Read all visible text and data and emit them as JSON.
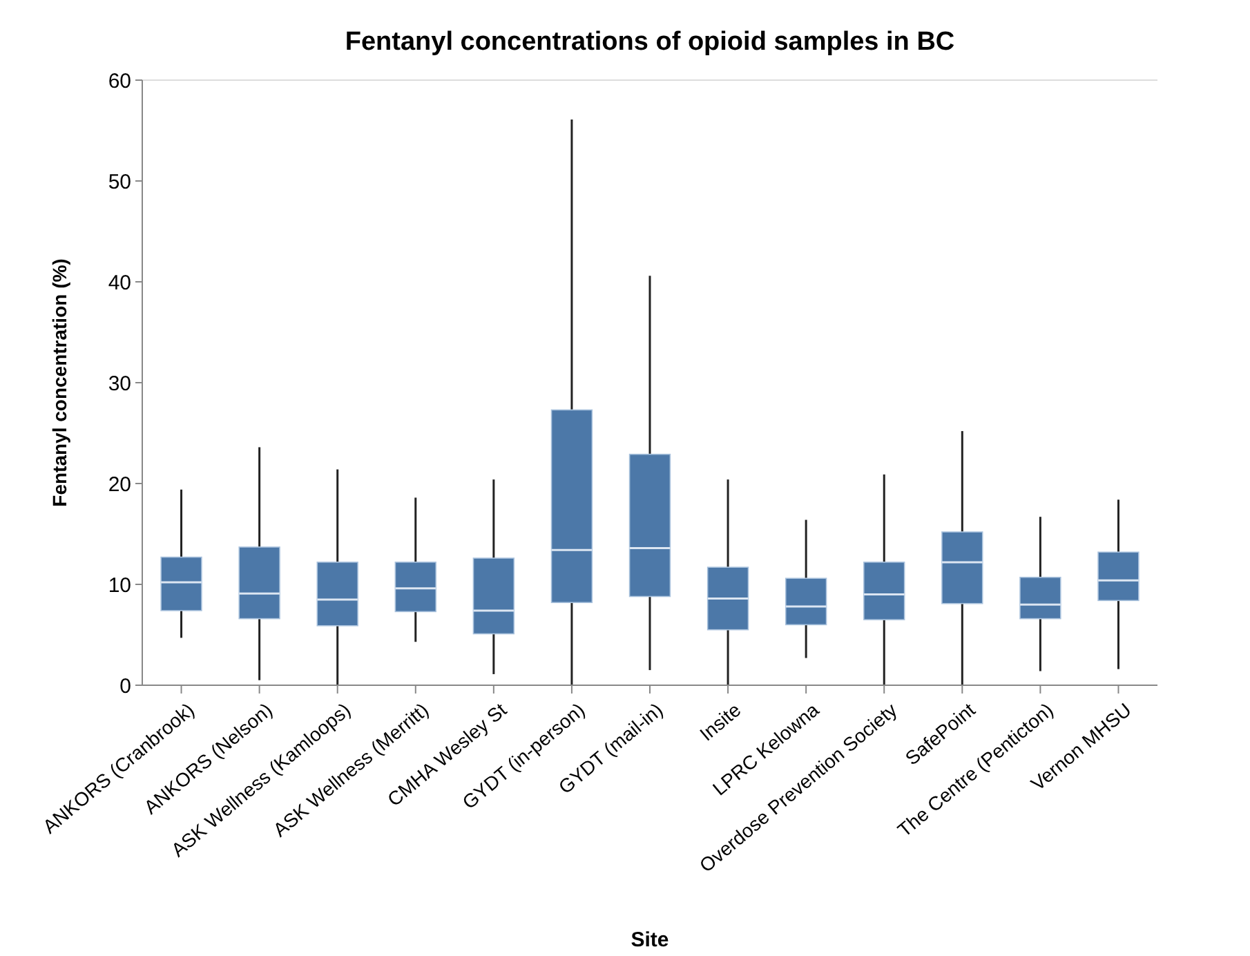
{
  "chart_data": {
    "type": "box",
    "title": "Fentanyl concentrations of opioid samples in BC",
    "xlabel": "Site",
    "ylabel": "Fentanyl concentration (%)",
    "categories": [
      "ANKORS (Cranbrook)",
      "ANKORS (Nelson)",
      "ASK Wellness (Kamloops)",
      "ASK Wellness (Merritt)",
      "CMHA Wesley St",
      "GYDT (in-person)",
      "GYDT (mail-in)",
      "Insite",
      "LPRC Kelowna",
      "Overdose Prevention Society",
      "SafePoint",
      "The Centre (Penticton)",
      "Vernon MHSU"
    ],
    "color": "#4c78a8",
    "ylim": [
      0,
      60
    ],
    "yticks": [
      0,
      10,
      20,
      30,
      40,
      50,
      60
    ],
    "grid": false,
    "boxes": [
      {
        "low": 4.7,
        "q1": 7.4,
        "median": 10.2,
        "q3": 12.7,
        "high": 19.4
      },
      {
        "low": 0.5,
        "q1": 6.6,
        "median": 9.1,
        "q3": 13.7,
        "high": 23.6
      },
      {
        "low": 0,
        "q1": 5.9,
        "median": 8.5,
        "q3": 12.2,
        "high": 21.4
      },
      {
        "low": 4.3,
        "q1": 7.3,
        "median": 9.6,
        "q3": 12.2,
        "high": 18.6
      },
      {
        "low": 1.1,
        "q1": 5.1,
        "median": 7.4,
        "q3": 12.6,
        "high": 20.4
      },
      {
        "low": 0,
        "q1": 8.2,
        "median": 13.4,
        "q3": 27.3,
        "high": 56.1
      },
      {
        "low": 1.5,
        "q1": 8.8,
        "median": 13.6,
        "q3": 22.9,
        "high": 40.6
      },
      {
        "low": 0,
        "q1": 5.5,
        "median": 8.6,
        "q3": 11.7,
        "high": 20.4
      },
      {
        "low": 2.7,
        "q1": 6.0,
        "median": 7.8,
        "q3": 10.6,
        "high": 16.4
      },
      {
        "low": 0,
        "q1": 6.5,
        "median": 9.0,
        "q3": 12.2,
        "high": 20.9
      },
      {
        "low": 0,
        "q1": 8.1,
        "median": 12.2,
        "q3": 15.2,
        "high": 25.2
      },
      {
        "low": 1.4,
        "q1": 6.6,
        "median": 8.0,
        "q3": 10.7,
        "high": 16.7
      },
      {
        "low": 1.6,
        "q1": 8.4,
        "median": 10.4,
        "q3": 13.2,
        "high": 18.4
      }
    ]
  }
}
